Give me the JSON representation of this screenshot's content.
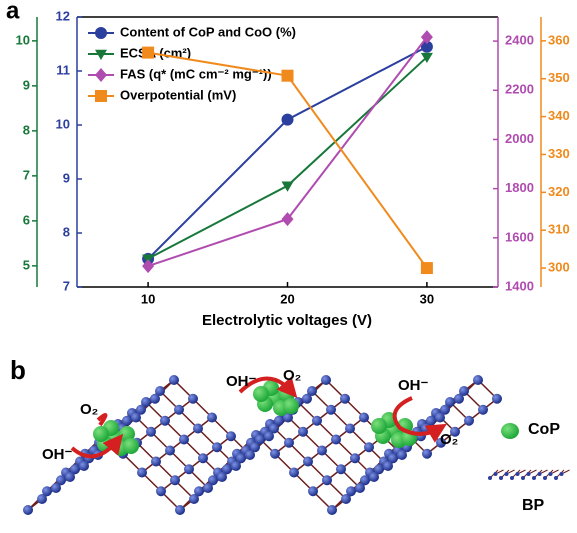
{
  "chart_data": {
    "type": "line",
    "panel_label": "a",
    "xlabel": "Electrolytic voltages (V)",
    "x": [
      10,
      20,
      30
    ],
    "xlim": [
      4.9,
      35.1
    ],
    "xticks": [
      10,
      20,
      30
    ],
    "ylim": [
      7,
      12
    ],
    "yticks": [
      7,
      8,
      9,
      10,
      11,
      12
    ],
    "y2lim": [
      1400,
      2498
    ],
    "y2ticks": [
      1400,
      1600,
      1800,
      2000,
      2200,
      2400
    ],
    "y3lim": [
      4.53,
      10.53
    ],
    "y3ticks": [
      5,
      6,
      7,
      8,
      9,
      10
    ],
    "y4lim": [
      295,
      366.3
    ],
    "y4ticks": [
      300,
      310,
      320,
      330,
      340,
      350,
      360
    ],
    "legend": "upper left",
    "series": [
      {
        "name": "Content of CoP and CoO (%)",
        "color": "#2b3f9e",
        "marker": "circle",
        "axis": "y",
        "values": [
          7.52,
          10.1,
          11.45
        ]
      },
      {
        "name": "ECSA (cm²)",
        "color": "#17783a",
        "marker": "triangle-down",
        "axis": "y3",
        "values": [
          5.16,
          6.78,
          9.64
        ]
      },
      {
        "name": "FAS (q* (mC cm⁻² mg⁻¹))",
        "color": "#b04cb0",
        "marker": "diamond",
        "axis": "y2",
        "values": [
          1485,
          1676,
          2416
        ]
      },
      {
        "name": "Overpotential (mV)",
        "color": "#f08a1c",
        "marker": "square",
        "axis": "y4",
        "values": [
          356.9,
          350.8,
          300
        ]
      }
    ]
  },
  "diagram": {
    "panel_label": "b",
    "annotations": [
      "O₂",
      "OH⁻",
      "OH⁻",
      "O₂",
      "OH⁻",
      "O₂"
    ],
    "legend": [
      "CoP",
      "BP"
    ]
  }
}
